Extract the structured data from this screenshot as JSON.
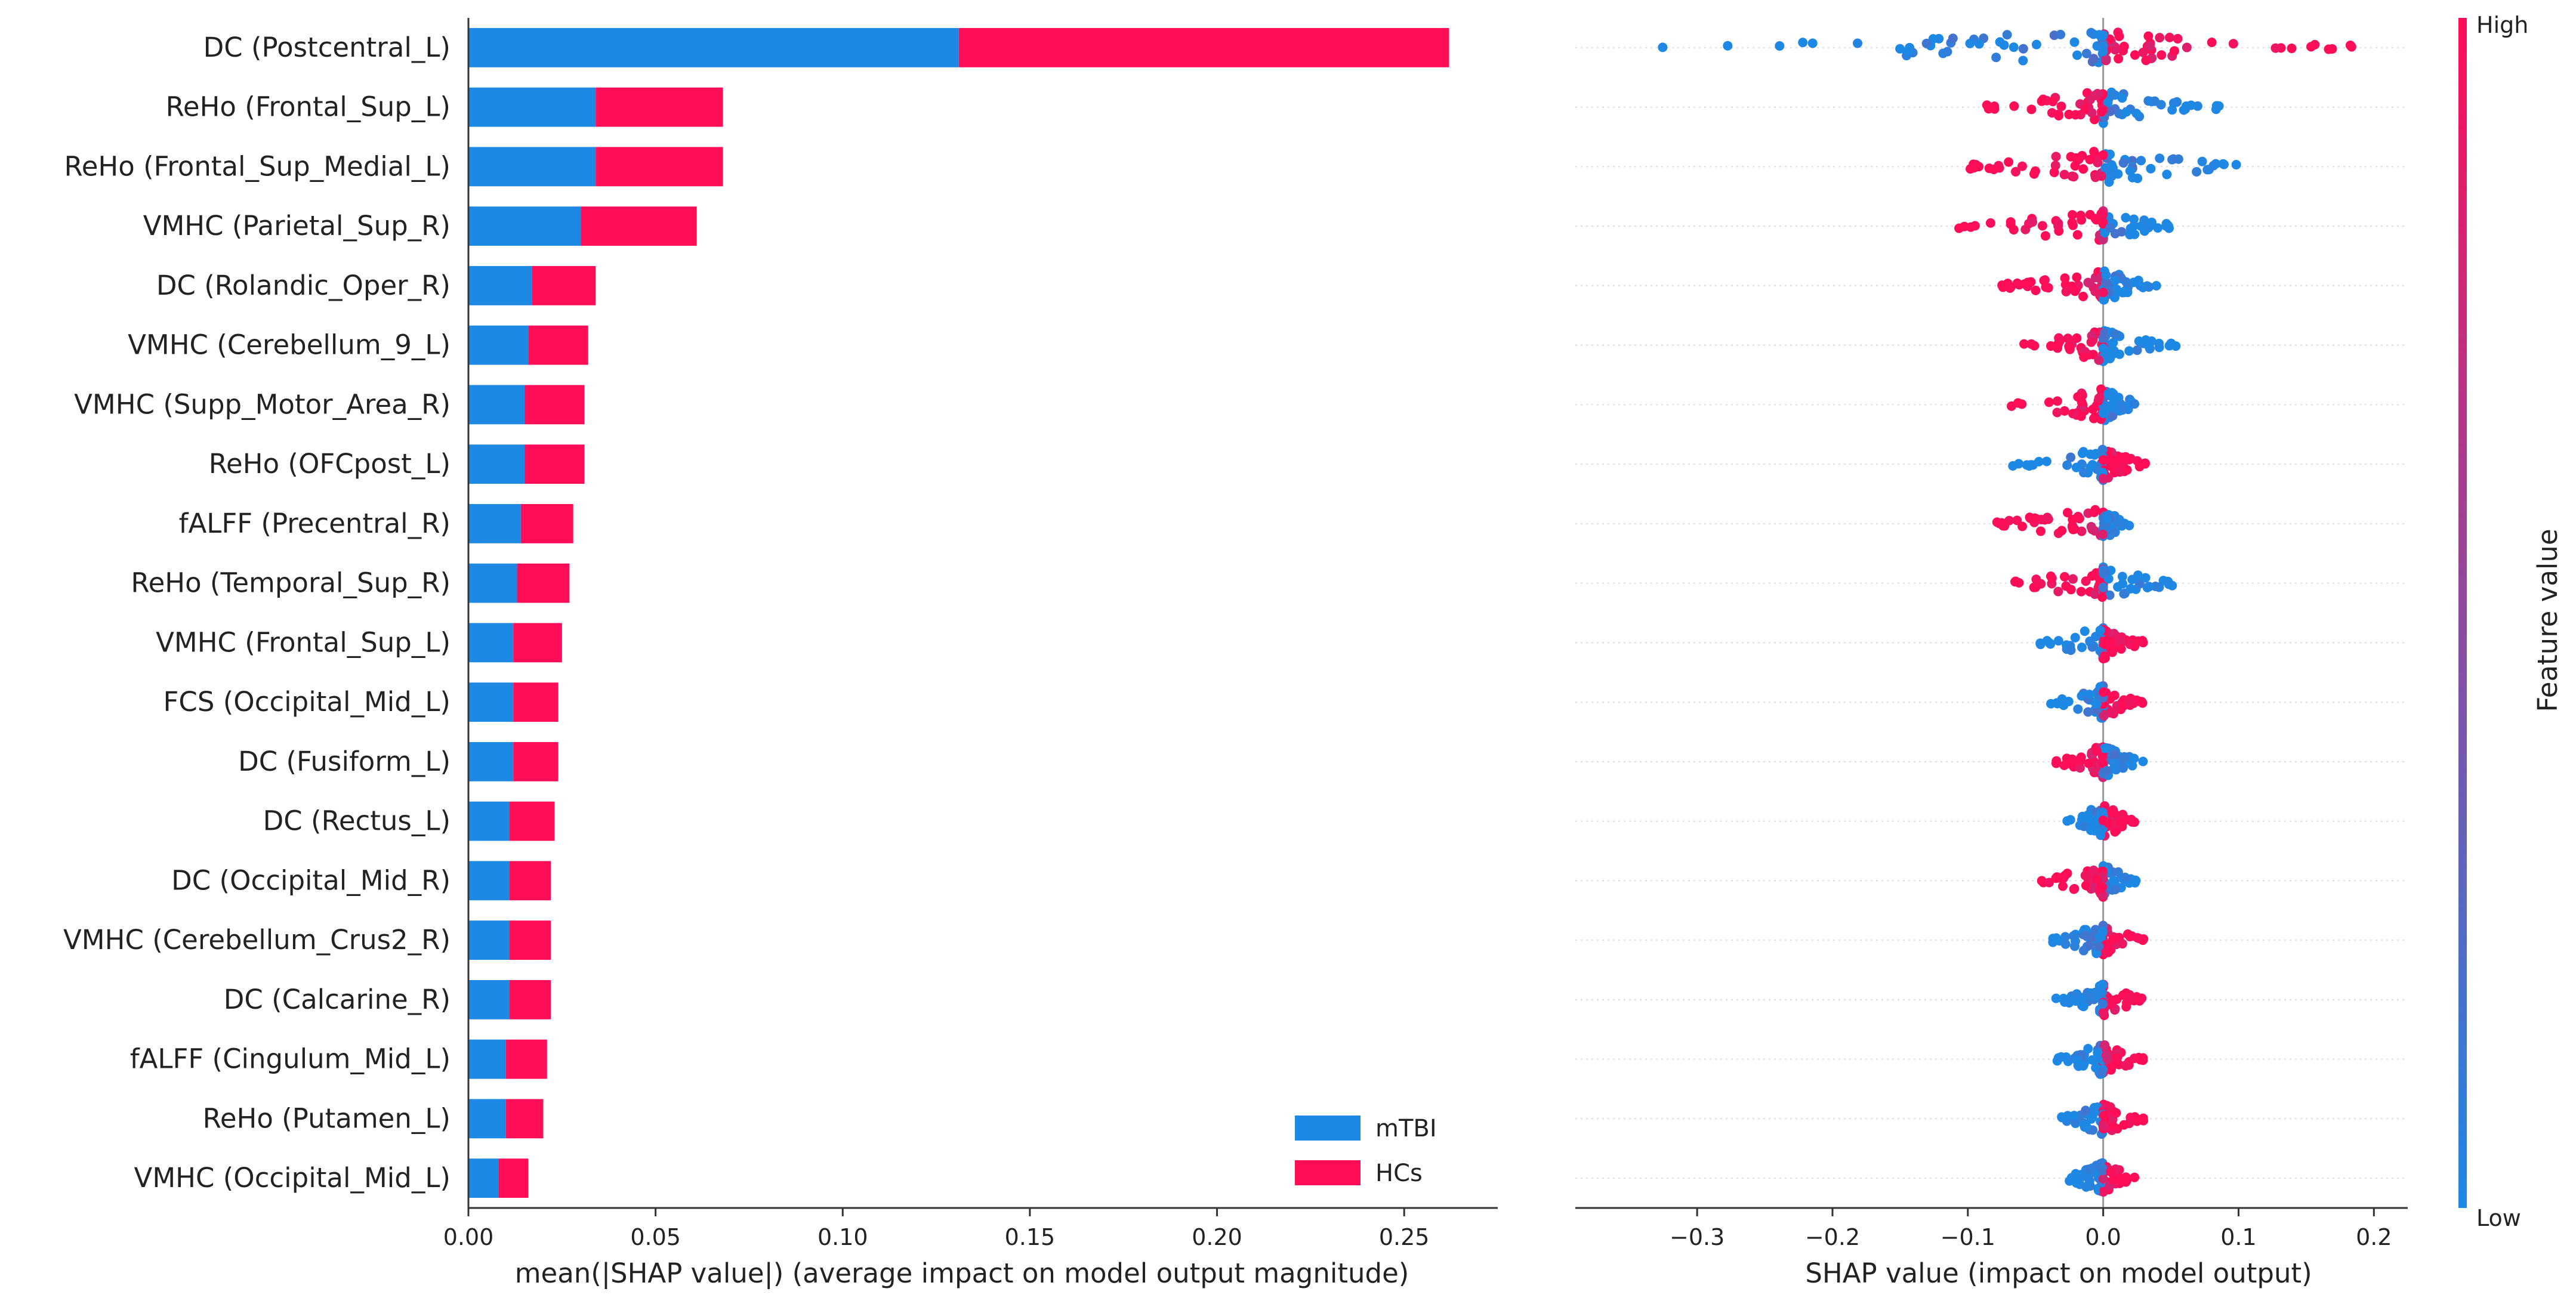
{
  "chart_data": [
    {
      "type": "bar",
      "stacked": true,
      "orientation": "horizontal",
      "xlabel": "mean(|SHAP value|) (average impact on model output magnitude)",
      "xlim": [
        0,
        0.275
      ],
      "xticks": [
        "0.00",
        "0.05",
        "0.10",
        "0.15",
        "0.20",
        "0.25"
      ],
      "legend_position": "bottom-right",
      "categories": [
        "DC (Postcentral_L)",
        "ReHo (Frontal_Sup_L)",
        "ReHo (Frontal_Sup_Medial_L)",
        "VMHC (Parietal_Sup_R)",
        "DC (Rolandic_Oper_R)",
        "VMHC (Cerebellum_9_L)",
        "VMHC (Supp_Motor_Area_R)",
        "ReHo (OFCpost_L)",
        "fALFF (Precentral_R)",
        "ReHo (Temporal_Sup_R)",
        "VMHC (Frontal_Sup_L)",
        "FCS (Occipital_Mid_L)",
        "DC (Fusiform_L)",
        "DC (Rectus_L)",
        "DC (Occipital_Mid_R)",
        "VMHC (Cerebellum_Crus2_R)",
        "DC (Calcarine_R)",
        "fALFF (Cingulum_Mid_L)",
        "ReHo (Putamen_L)",
        "VMHC (Occipital_Mid_L)"
      ],
      "series": [
        {
          "name": "mTBI",
          "color": "#1e88e5",
          "values": [
            0.131,
            0.034,
            0.034,
            0.03,
            0.017,
            0.016,
            0.015,
            0.015,
            0.014,
            0.013,
            0.012,
            0.012,
            0.012,
            0.011,
            0.011,
            0.011,
            0.011,
            0.01,
            0.01,
            0.008
          ]
        },
        {
          "name": "HCs",
          "color": "#ff0d57",
          "values": [
            0.131,
            0.034,
            0.034,
            0.031,
            0.017,
            0.016,
            0.016,
            0.016,
            0.014,
            0.014,
            0.013,
            0.012,
            0.012,
            0.012,
            0.011,
            0.011,
            0.011,
            0.011,
            0.01,
            0.008
          ]
        }
      ]
    },
    {
      "type": "scatter",
      "subtype": "beeswarm",
      "xlabel": "SHAP value (impact on model output)",
      "xlim": [
        -0.39,
        0.225
      ],
      "xticks": [
        "−0.3",
        "−0.2",
        "−0.1",
        "0.0",
        "0.1",
        "0.2"
      ],
      "colorbar": {
        "label": "Feature value",
        "high_label": "High",
        "low_label": "Low",
        "low_color": "#1e88e5",
        "high_color": "#ff0d57"
      },
      "rows": [
        {
          "range": [
            -0.36,
            0.2
          ],
          "negative_color": "low",
          "positive_color": "high"
        },
        {
          "range": [
            -0.09,
            0.09
          ],
          "negative_color": "high",
          "positive_color": "low"
        },
        {
          "range": [
            -0.1,
            0.11
          ],
          "negative_color": "high",
          "positive_color": "low"
        },
        {
          "range": [
            -0.11,
            0.05
          ],
          "negative_color": "high",
          "positive_color": "low"
        },
        {
          "range": [
            -0.075,
            0.04
          ],
          "negative_color": "high",
          "positive_color": "low"
        },
        {
          "range": [
            -0.06,
            0.055
          ],
          "negative_color": "high",
          "positive_color": "low"
        },
        {
          "range": [
            -0.07,
            0.03
          ],
          "negative_color": "high",
          "positive_color": "low"
        },
        {
          "range": [
            -0.07,
            0.035
          ],
          "negative_color": "low",
          "positive_color": "high"
        },
        {
          "range": [
            -0.09,
            0.02
          ],
          "negative_color": "high",
          "positive_color": "low"
        },
        {
          "range": [
            -0.07,
            0.055
          ],
          "negative_color": "high",
          "positive_color": "low"
        },
        {
          "range": [
            -0.05,
            0.03
          ],
          "negative_color": "low",
          "positive_color": "high"
        },
        {
          "range": [
            -0.04,
            0.03
          ],
          "negative_color": "low",
          "positive_color": "high"
        },
        {
          "range": [
            -0.04,
            0.03
          ],
          "negative_color": "high",
          "positive_color": "low"
        },
        {
          "range": [
            -0.03,
            0.025
          ],
          "negative_color": "low",
          "positive_color": "high"
        },
        {
          "range": [
            -0.05,
            0.025
          ],
          "negative_color": "high",
          "positive_color": "low"
        },
        {
          "range": [
            -0.04,
            0.03
          ],
          "negative_color": "low",
          "positive_color": "high"
        },
        {
          "range": [
            -0.035,
            0.03
          ],
          "negative_color": "low",
          "positive_color": "high"
        },
        {
          "range": [
            -0.035,
            0.03
          ],
          "negative_color": "low",
          "positive_color": "high"
        },
        {
          "range": [
            -0.035,
            0.03
          ],
          "negative_color": "low",
          "positive_color": "high"
        },
        {
          "range": [
            -0.03,
            0.025
          ],
          "negative_color": "low",
          "positive_color": "high"
        }
      ]
    }
  ]
}
